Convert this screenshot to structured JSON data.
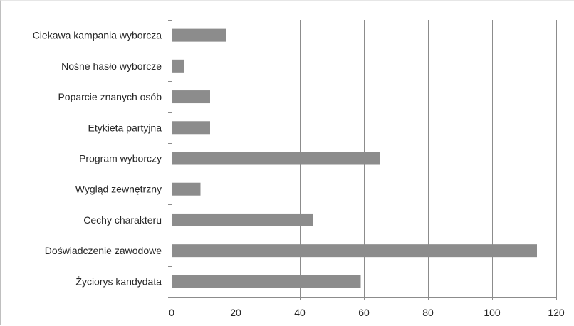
{
  "chart_data": {
    "type": "bar",
    "orientation": "horizontal",
    "title": "",
    "xlabel": "",
    "ylabel": "",
    "categories": [
      "Ciekawa kampania wyborcza",
      "Nośne hasło wyborcze",
      "Poparcie znanych osób",
      "Etykieta partyjna",
      "Program wyborczy",
      "Wygląd zewnętrzny",
      "Cechy charakteru",
      "Doświadczenie zawodowe",
      "Życiorys kandydata"
    ],
    "values": [
      17,
      4,
      12,
      12,
      65,
      9,
      44,
      114,
      59
    ],
    "xlim": [
      0,
      120
    ],
    "xticks": [
      "0",
      "20",
      "40",
      "60",
      "80",
      "100",
      "120"
    ],
    "grid": "vertical",
    "legend": "none",
    "colors": {
      "bar": "#8c8c8c",
      "grid": "#8c8c8c",
      "axis": "#8c8c8c",
      "text": "#262626"
    }
  }
}
